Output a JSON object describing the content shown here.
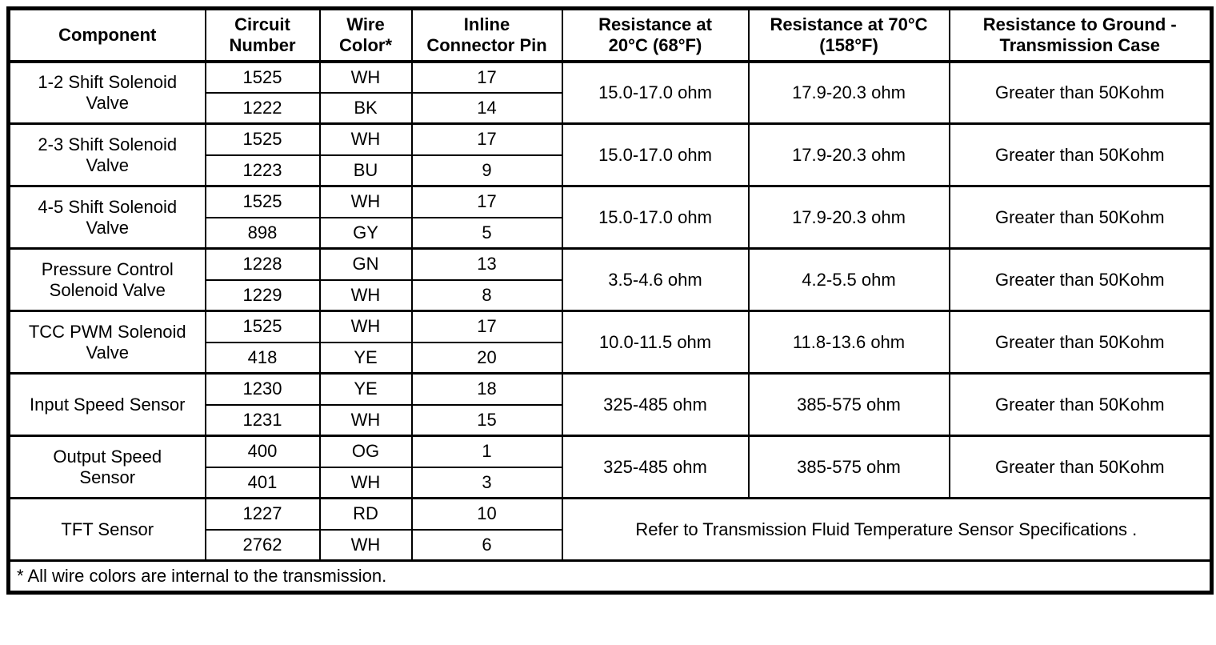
{
  "table": {
    "colors": {
      "text": "#000000",
      "background": "#ffffff",
      "border": "#000000"
    },
    "columns": [
      "Component",
      "Circuit\nNumber",
      "Wire\nColor*",
      "Inline\nConnector Pin",
      "Resistance at\n20°C (68°F)",
      "Resistance at 70°C\n(158°F)",
      "Resistance to Ground -\nTransmission Case"
    ],
    "rows": [
      {
        "component": "1-2 Shift Solenoid\nValve",
        "circuits": [
          {
            "circuit": "1525",
            "color": "WH",
            "pin": "17"
          },
          {
            "circuit": "1222",
            "color": "BK",
            "pin": "14"
          }
        ],
        "res20": "15.0-17.0 ohm",
        "res70": "17.9-20.3 ohm",
        "ground": "Greater than 50Kohm"
      },
      {
        "component": "2-3 Shift Solenoid\nValve",
        "circuits": [
          {
            "circuit": "1525",
            "color": "WH",
            "pin": "17"
          },
          {
            "circuit": "1223",
            "color": "BU",
            "pin": "9"
          }
        ],
        "res20": "15.0-17.0 ohm",
        "res70": "17.9-20.3 ohm",
        "ground": "Greater than 50Kohm"
      },
      {
        "component": "4-5 Shift Solenoid\nValve",
        "circuits": [
          {
            "circuit": "1525",
            "color": "WH",
            "pin": "17"
          },
          {
            "circuit": "898",
            "color": "GY",
            "pin": "5"
          }
        ],
        "res20": "15.0-17.0 ohm",
        "res70": "17.9-20.3 ohm",
        "ground": "Greater than 50Kohm"
      },
      {
        "component": "Pressure Control\nSolenoid Valve",
        "circuits": [
          {
            "circuit": "1228",
            "color": "GN",
            "pin": "13"
          },
          {
            "circuit": "1229",
            "color": "WH",
            "pin": "8"
          }
        ],
        "res20": "3.5-4.6 ohm",
        "res70": "4.2-5.5 ohm",
        "ground": "Greater than 50Kohm"
      },
      {
        "component": "TCC PWM Solenoid\nValve",
        "circuits": [
          {
            "circuit": "1525",
            "color": "WH",
            "pin": "17"
          },
          {
            "circuit": "418",
            "color": "YE",
            "pin": "20"
          }
        ],
        "res20": "10.0-11.5 ohm",
        "res70": "11.8-13.6 ohm",
        "ground": "Greater than 50Kohm"
      },
      {
        "component": "Input Speed Sensor",
        "circuits": [
          {
            "circuit": "1230",
            "color": "YE",
            "pin": "18"
          },
          {
            "circuit": "1231",
            "color": "WH",
            "pin": "15"
          }
        ],
        "res20": "325-485 ohm",
        "res70": "385-575 ohm",
        "ground": "Greater than 50Kohm"
      },
      {
        "component": "Output Speed\nSensor",
        "circuits": [
          {
            "circuit": "400",
            "color": "OG",
            "pin": "1"
          },
          {
            "circuit": "401",
            "color": "WH",
            "pin": "3"
          }
        ],
        "res20": "325-485 ohm",
        "res70": "385-575 ohm",
        "ground": "Greater than 50Kohm"
      },
      {
        "component": "TFT Sensor",
        "circuits": [
          {
            "circuit": "1227",
            "color": "RD",
            "pin": "10"
          },
          {
            "circuit": "2762",
            "color": "WH",
            "pin": "6"
          }
        ],
        "note": "Refer to Transmission Fluid Temperature Sensor Specifications ."
      }
    ],
    "footnote": "* All wire colors are internal to the transmission."
  }
}
